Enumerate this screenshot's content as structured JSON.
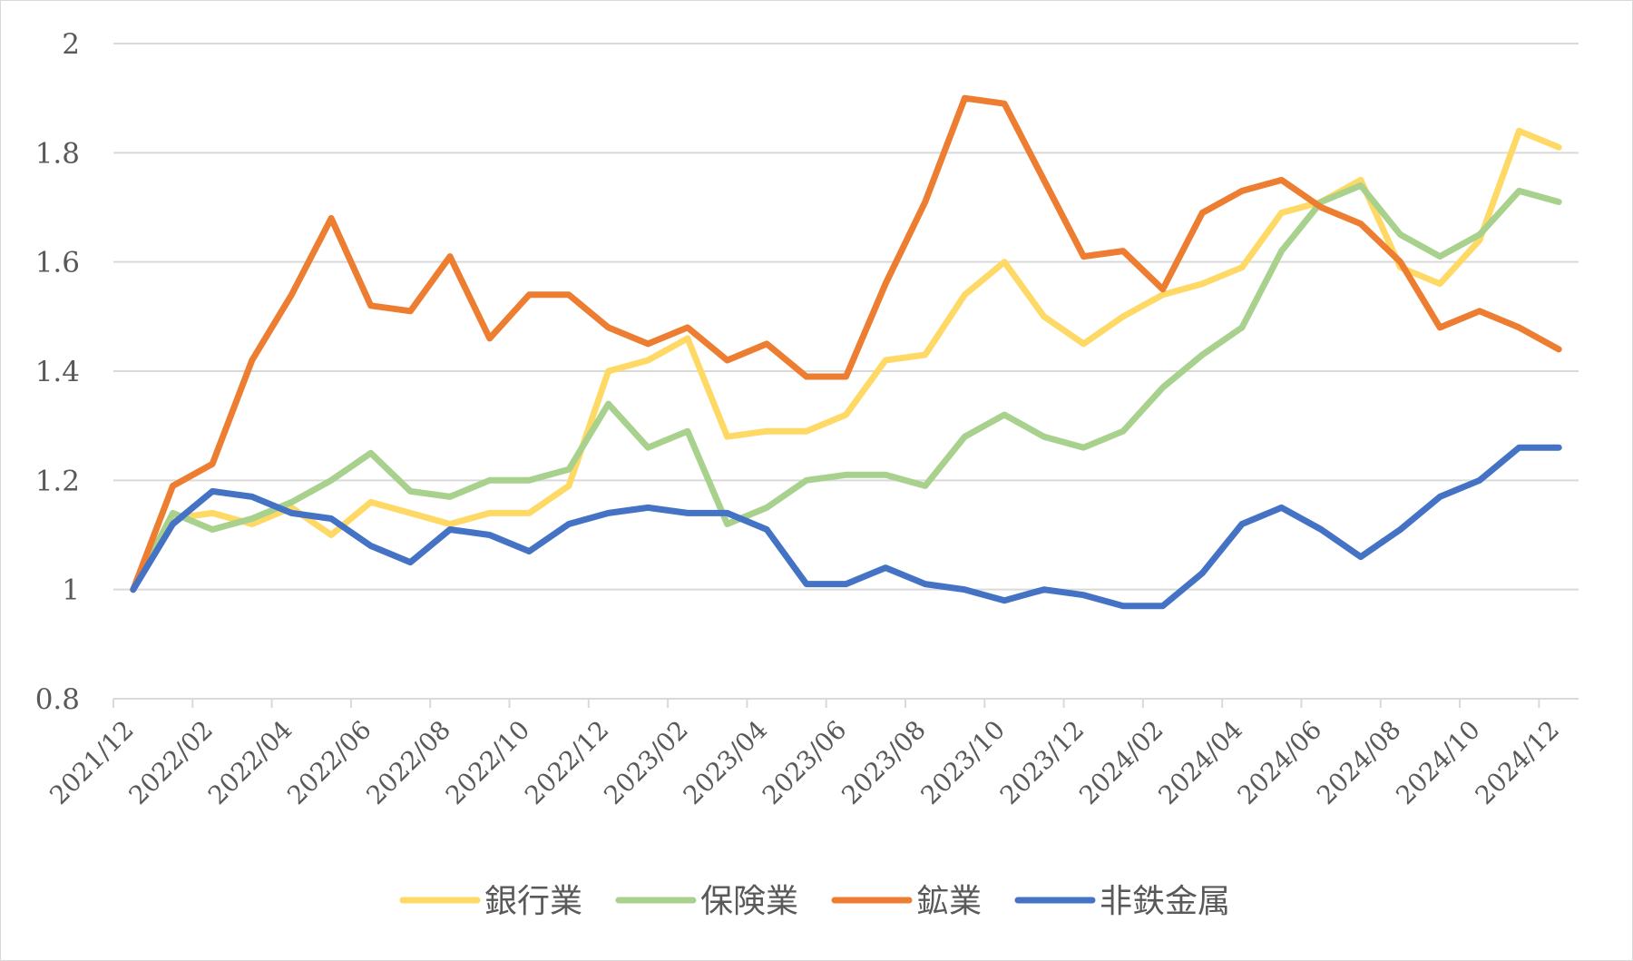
{
  "chart_data": {
    "type": "line",
    "title": "",
    "xlabel": "",
    "ylabel": "",
    "ylim": [
      0.8,
      2.0
    ],
    "y_ticks": [
      "0.8",
      "1",
      "1.2",
      "1.4",
      "1.6",
      "1.8",
      "2"
    ],
    "x_tick_labels": [
      "2021/12",
      "2022/02",
      "2022/04",
      "2022/06",
      "2022/08",
      "2022/10",
      "2022/12",
      "2023/02",
      "2023/04",
      "2023/06",
      "2023/08",
      "2023/10",
      "2023/12",
      "2024/02",
      "2024/04",
      "2024/06",
      "2024/08",
      "2024/10",
      "2024/12"
    ],
    "x": [
      "2021/12",
      "2022/01",
      "2022/02",
      "2022/03",
      "2022/04",
      "2022/05",
      "2022/06",
      "2022/07",
      "2022/08",
      "2022/09",
      "2022/10",
      "2022/11",
      "2022/12",
      "2023/01",
      "2023/02",
      "2023/03",
      "2023/04",
      "2023/05",
      "2023/06",
      "2023/07",
      "2023/08",
      "2023/09",
      "2023/10",
      "2023/11",
      "2023/12",
      "2024/01",
      "2024/02",
      "2024/03",
      "2024/04",
      "2024/05",
      "2024/06",
      "2024/07",
      "2024/08",
      "2024/09",
      "2024/10",
      "2024/11",
      "2024/12"
    ],
    "grid": true,
    "legend_position": "bottom",
    "series": [
      {
        "name": "銀行業",
        "color": "#FFD966",
        "values": [
          1.0,
          1.13,
          1.14,
          1.12,
          1.15,
          1.1,
          1.16,
          1.14,
          1.12,
          1.14,
          1.14,
          1.19,
          1.4,
          1.42,
          1.46,
          1.28,
          1.29,
          1.29,
          1.32,
          1.42,
          1.43,
          1.54,
          1.6,
          1.5,
          1.45,
          1.5,
          1.54,
          1.56,
          1.59,
          1.69,
          1.71,
          1.75,
          1.59,
          1.56,
          1.64,
          1.84,
          1.81
        ]
      },
      {
        "name": "保険業",
        "color": "#A9D18E",
        "values": [
          1.0,
          1.14,
          1.11,
          1.13,
          1.16,
          1.2,
          1.25,
          1.18,
          1.17,
          1.2,
          1.2,
          1.22,
          1.34,
          1.26,
          1.29,
          1.12,
          1.15,
          1.2,
          1.21,
          1.21,
          1.19,
          1.28,
          1.32,
          1.28,
          1.26,
          1.29,
          1.37,
          1.43,
          1.48,
          1.62,
          1.71,
          1.74,
          1.65,
          1.61,
          1.65,
          1.73,
          1.71
        ]
      },
      {
        "name": "鉱業",
        "color": "#ED7D31",
        "values": [
          1.0,
          1.19,
          1.23,
          1.42,
          1.54,
          1.68,
          1.52,
          1.51,
          1.61,
          1.46,
          1.54,
          1.54,
          1.48,
          1.45,
          1.48,
          1.42,
          1.45,
          1.39,
          1.39,
          1.56,
          1.71,
          1.9,
          1.89,
          1.75,
          1.61,
          1.62,
          1.55,
          1.69,
          1.73,
          1.75,
          1.7,
          1.67,
          1.6,
          1.48,
          1.51,
          1.48,
          1.44
        ]
      },
      {
        "name": "非鉄金属",
        "color": "#4472C4",
        "values": [
          1.0,
          1.12,
          1.18,
          1.17,
          1.14,
          1.13,
          1.08,
          1.05,
          1.11,
          1.1,
          1.07,
          1.12,
          1.14,
          1.15,
          1.14,
          1.14,
          1.11,
          1.01,
          1.01,
          1.04,
          1.01,
          1.0,
          0.98,
          1.0,
          0.99,
          0.97,
          0.97,
          1.03,
          1.12,
          1.15,
          1.11,
          1.06,
          1.11,
          1.17,
          1.2,
          1.26,
          1.26
        ]
      }
    ]
  }
}
